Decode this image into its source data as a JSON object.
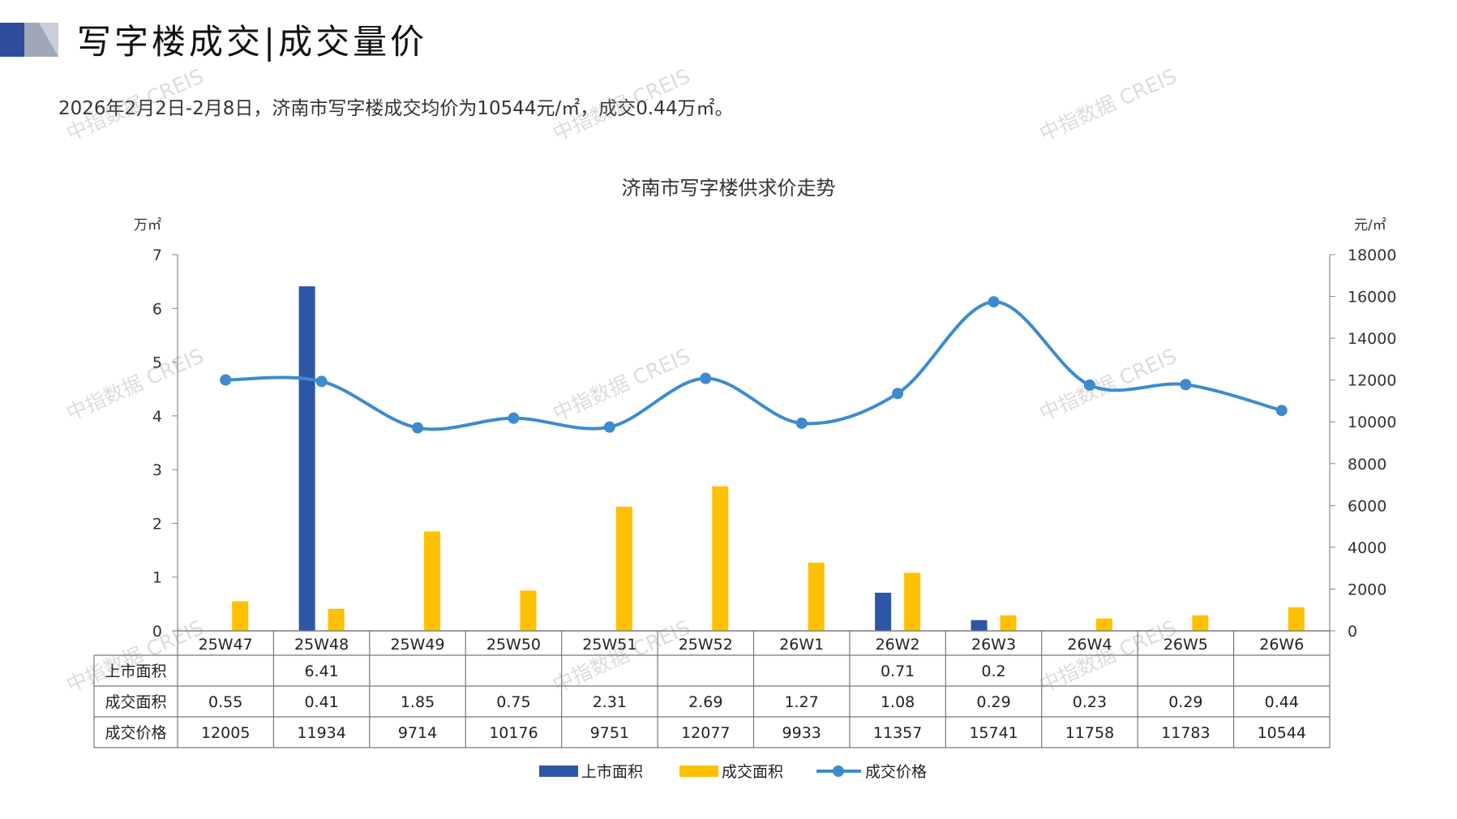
{
  "header": {
    "title": "写字楼成交|成交量价",
    "summary": "2026年2月2日-2月8日，济南市写字楼成交均价为10544元/㎡，成交0.44万㎡。"
  },
  "watermark": {
    "text": "中指数据 CREIS"
  },
  "colors": {
    "supply": "#2E56A6",
    "deal_area": "#FFC000",
    "price": "#3D8BCF",
    "accent_dark": "#2F4C9A"
  },
  "chart_data": {
    "type": "bar",
    "title": "济南市写字楼供求价走势",
    "y_left_unit": "万㎡",
    "y_right_unit": "元/㎡",
    "y_left_lim": [
      0,
      7
    ],
    "y_left_ticks": [
      "0",
      "1",
      "2",
      "3",
      "4",
      "5",
      "6",
      "7"
    ],
    "y_right_lim": [
      0,
      18000
    ],
    "y_right_ticks": [
      "0",
      "2000",
      "4000",
      "6000",
      "8000",
      "10000",
      "12000",
      "14000",
      "16000",
      "18000"
    ],
    "categories": [
      "25W47",
      "25W48",
      "25W49",
      "25W50",
      "25W51",
      "25W52",
      "26W1",
      "26W2",
      "26W3",
      "26W4",
      "26W5",
      "26W6"
    ],
    "series": [
      {
        "name": "上市面积",
        "type": "bar",
        "axis": "left",
        "values": [
          null,
          6.41,
          null,
          null,
          null,
          null,
          null,
          0.71,
          0.2,
          null,
          null,
          null
        ]
      },
      {
        "name": "成交面积",
        "type": "bar",
        "axis": "left",
        "values": [
          0.55,
          0.41,
          1.85,
          0.75,
          2.31,
          2.69,
          1.27,
          1.08,
          0.29,
          0.23,
          0.29,
          0.44
        ]
      },
      {
        "name": "成交价格",
        "type": "line",
        "axis": "right",
        "values": [
          12005,
          11934,
          9714,
          10176,
          9751,
          12077,
          9933,
          11357,
          15741,
          11758,
          11783,
          10544
        ]
      }
    ],
    "table": {
      "row_labels": [
        "上市面积",
        "成交面积",
        "成交价格"
      ],
      "rows": [
        [
          "",
          "6.41",
          "",
          "",
          "",
          "",
          "",
          "0.71",
          "0.2",
          "",
          "",
          ""
        ],
        [
          "0.55",
          "0.41",
          "1.85",
          "0.75",
          "2.31",
          "2.69",
          "1.27",
          "1.08",
          "0.29",
          "0.23",
          "0.29",
          "0.44"
        ],
        [
          "12005",
          "11934",
          "9714",
          "10176",
          "9751",
          "12077",
          "9933",
          "11357",
          "15741",
          "11758",
          "11783",
          "10544"
        ]
      ]
    },
    "legend": [
      "上市面积",
      "成交面积",
      "成交价格"
    ],
    "legend_position": "bottom"
  }
}
